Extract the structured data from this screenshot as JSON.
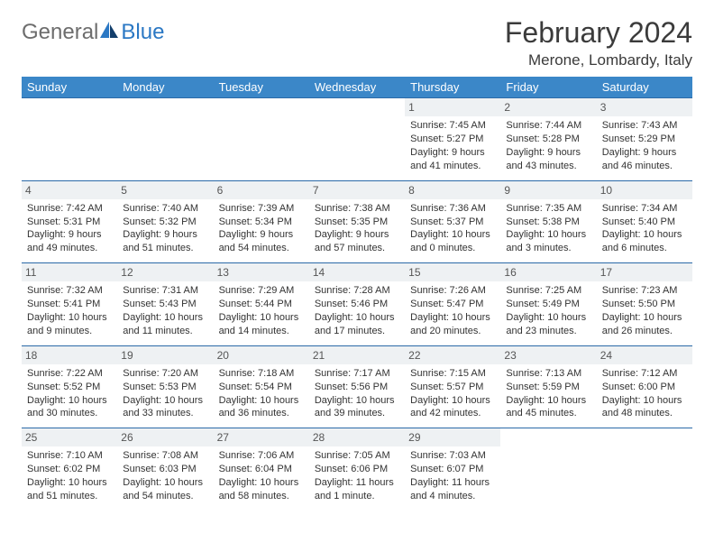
{
  "logo": {
    "general": "General",
    "blue": "Blue"
  },
  "title": "February 2024",
  "location": "Merone, Lombardy, Italy",
  "day_labels": [
    "Sunday",
    "Monday",
    "Tuesday",
    "Wednesday",
    "Thursday",
    "Friday",
    "Saturday"
  ],
  "colors": {
    "header_bg": "#3b87c8",
    "header_text": "#ffffff",
    "border": "#2b6aa8",
    "daynum_bg": "#eef1f3",
    "logo_gray": "#6d6d6d",
    "logo_blue": "#2b78c4"
  },
  "weeks": [
    [
      null,
      null,
      null,
      null,
      {
        "n": "1",
        "sunrise": "Sunrise: 7:45 AM",
        "sunset": "Sunset: 5:27 PM",
        "day1": "Daylight: 9 hours",
        "day2": "and 41 minutes."
      },
      {
        "n": "2",
        "sunrise": "Sunrise: 7:44 AM",
        "sunset": "Sunset: 5:28 PM",
        "day1": "Daylight: 9 hours",
        "day2": "and 43 minutes."
      },
      {
        "n": "3",
        "sunrise": "Sunrise: 7:43 AM",
        "sunset": "Sunset: 5:29 PM",
        "day1": "Daylight: 9 hours",
        "day2": "and 46 minutes."
      }
    ],
    [
      {
        "n": "4",
        "sunrise": "Sunrise: 7:42 AM",
        "sunset": "Sunset: 5:31 PM",
        "day1": "Daylight: 9 hours",
        "day2": "and 49 minutes."
      },
      {
        "n": "5",
        "sunrise": "Sunrise: 7:40 AM",
        "sunset": "Sunset: 5:32 PM",
        "day1": "Daylight: 9 hours",
        "day2": "and 51 minutes."
      },
      {
        "n": "6",
        "sunrise": "Sunrise: 7:39 AM",
        "sunset": "Sunset: 5:34 PM",
        "day1": "Daylight: 9 hours",
        "day2": "and 54 minutes."
      },
      {
        "n": "7",
        "sunrise": "Sunrise: 7:38 AM",
        "sunset": "Sunset: 5:35 PM",
        "day1": "Daylight: 9 hours",
        "day2": "and 57 minutes."
      },
      {
        "n": "8",
        "sunrise": "Sunrise: 7:36 AM",
        "sunset": "Sunset: 5:37 PM",
        "day1": "Daylight: 10 hours",
        "day2": "and 0 minutes."
      },
      {
        "n": "9",
        "sunrise": "Sunrise: 7:35 AM",
        "sunset": "Sunset: 5:38 PM",
        "day1": "Daylight: 10 hours",
        "day2": "and 3 minutes."
      },
      {
        "n": "10",
        "sunrise": "Sunrise: 7:34 AM",
        "sunset": "Sunset: 5:40 PM",
        "day1": "Daylight: 10 hours",
        "day2": "and 6 minutes."
      }
    ],
    [
      {
        "n": "11",
        "sunrise": "Sunrise: 7:32 AM",
        "sunset": "Sunset: 5:41 PM",
        "day1": "Daylight: 10 hours",
        "day2": "and 9 minutes."
      },
      {
        "n": "12",
        "sunrise": "Sunrise: 7:31 AM",
        "sunset": "Sunset: 5:43 PM",
        "day1": "Daylight: 10 hours",
        "day2": "and 11 minutes."
      },
      {
        "n": "13",
        "sunrise": "Sunrise: 7:29 AM",
        "sunset": "Sunset: 5:44 PM",
        "day1": "Daylight: 10 hours",
        "day2": "and 14 minutes."
      },
      {
        "n": "14",
        "sunrise": "Sunrise: 7:28 AM",
        "sunset": "Sunset: 5:46 PM",
        "day1": "Daylight: 10 hours",
        "day2": "and 17 minutes."
      },
      {
        "n": "15",
        "sunrise": "Sunrise: 7:26 AM",
        "sunset": "Sunset: 5:47 PM",
        "day1": "Daylight: 10 hours",
        "day2": "and 20 minutes."
      },
      {
        "n": "16",
        "sunrise": "Sunrise: 7:25 AM",
        "sunset": "Sunset: 5:49 PM",
        "day1": "Daylight: 10 hours",
        "day2": "and 23 minutes."
      },
      {
        "n": "17",
        "sunrise": "Sunrise: 7:23 AM",
        "sunset": "Sunset: 5:50 PM",
        "day1": "Daylight: 10 hours",
        "day2": "and 26 minutes."
      }
    ],
    [
      {
        "n": "18",
        "sunrise": "Sunrise: 7:22 AM",
        "sunset": "Sunset: 5:52 PM",
        "day1": "Daylight: 10 hours",
        "day2": "and 30 minutes."
      },
      {
        "n": "19",
        "sunrise": "Sunrise: 7:20 AM",
        "sunset": "Sunset: 5:53 PM",
        "day1": "Daylight: 10 hours",
        "day2": "and 33 minutes."
      },
      {
        "n": "20",
        "sunrise": "Sunrise: 7:18 AM",
        "sunset": "Sunset: 5:54 PM",
        "day1": "Daylight: 10 hours",
        "day2": "and 36 minutes."
      },
      {
        "n": "21",
        "sunrise": "Sunrise: 7:17 AM",
        "sunset": "Sunset: 5:56 PM",
        "day1": "Daylight: 10 hours",
        "day2": "and 39 minutes."
      },
      {
        "n": "22",
        "sunrise": "Sunrise: 7:15 AM",
        "sunset": "Sunset: 5:57 PM",
        "day1": "Daylight: 10 hours",
        "day2": "and 42 minutes."
      },
      {
        "n": "23",
        "sunrise": "Sunrise: 7:13 AM",
        "sunset": "Sunset: 5:59 PM",
        "day1": "Daylight: 10 hours",
        "day2": "and 45 minutes."
      },
      {
        "n": "24",
        "sunrise": "Sunrise: 7:12 AM",
        "sunset": "Sunset: 6:00 PM",
        "day1": "Daylight: 10 hours",
        "day2": "and 48 minutes."
      }
    ],
    [
      {
        "n": "25",
        "sunrise": "Sunrise: 7:10 AM",
        "sunset": "Sunset: 6:02 PM",
        "day1": "Daylight: 10 hours",
        "day2": "and 51 minutes."
      },
      {
        "n": "26",
        "sunrise": "Sunrise: 7:08 AM",
        "sunset": "Sunset: 6:03 PM",
        "day1": "Daylight: 10 hours",
        "day2": "and 54 minutes."
      },
      {
        "n": "27",
        "sunrise": "Sunrise: 7:06 AM",
        "sunset": "Sunset: 6:04 PM",
        "day1": "Daylight: 10 hours",
        "day2": "and 58 minutes."
      },
      {
        "n": "28",
        "sunrise": "Sunrise: 7:05 AM",
        "sunset": "Sunset: 6:06 PM",
        "day1": "Daylight: 11 hours",
        "day2": "and 1 minute."
      },
      {
        "n": "29",
        "sunrise": "Sunrise: 7:03 AM",
        "sunset": "Sunset: 6:07 PM",
        "day1": "Daylight: 11 hours",
        "day2": "and 4 minutes."
      },
      null,
      null
    ]
  ]
}
